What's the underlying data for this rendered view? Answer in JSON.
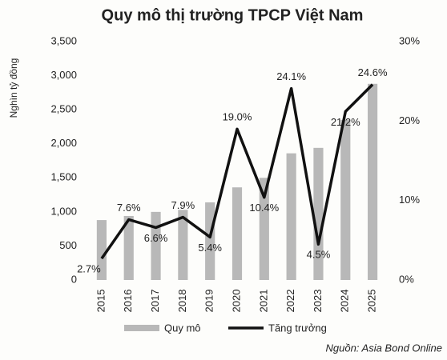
{
  "chart_data": {
    "type": "bar_line",
    "title": "Quy mô thị trường TPCP Việt Nam",
    "y_label": "Nghìn tỷ đồng",
    "source": "Nguồn: Asia Bond Online",
    "categories": [
      "2015",
      "2016",
      "2017",
      "2018",
      "2019",
      "2020",
      "2021",
      "2022",
      "2023",
      "2024",
      "2025"
    ],
    "series": [
      {
        "name": "Quy mô",
        "type": "bar",
        "color": "#b8b8b8",
        "axis": "y",
        "values": [
          880,
          940,
          1000,
          1030,
          1140,
          1360,
          1500,
          1860,
          1940,
          2350,
          2880
        ]
      },
      {
        "name": "Tăng trưởng",
        "type": "line",
        "color": "#111111",
        "axis": "y2",
        "values": [
          2.7,
          7.6,
          6.6,
          7.9,
          5.4,
          19.0,
          10.4,
          24.1,
          4.5,
          21.2,
          24.6
        ],
        "value_labels": [
          "2.7%",
          "7.6%",
          "6.6%",
          "7.9%",
          "5.4%",
          "19.0%",
          "10.4%",
          "24.1%",
          "4.5%",
          "21.2%",
          "24.6%"
        ]
      }
    ],
    "ylim": [
      0,
      3500
    ],
    "yticks": [
      0,
      500,
      {
        "value": 1000,
        "label": "1,000"
      },
      {
        "value": 1500,
        "label": "1,500"
      },
      {
        "value": 2000,
        "label": "2,000"
      },
      {
        "value": 2500,
        "label": "2,500"
      },
      {
        "value": 3000,
        "label": "3,000"
      },
      {
        "value": 3500,
        "label": "3,500"
      }
    ],
    "y2lim": [
      0,
      30
    ],
    "y2ticks": [
      {
        "value": 0,
        "label": "0%"
      },
      {
        "value": 10,
        "label": "10%"
      },
      {
        "value": 20,
        "label": "20%"
      },
      {
        "value": 30,
        "label": "30%"
      }
    ],
    "legend": "bottom"
  }
}
